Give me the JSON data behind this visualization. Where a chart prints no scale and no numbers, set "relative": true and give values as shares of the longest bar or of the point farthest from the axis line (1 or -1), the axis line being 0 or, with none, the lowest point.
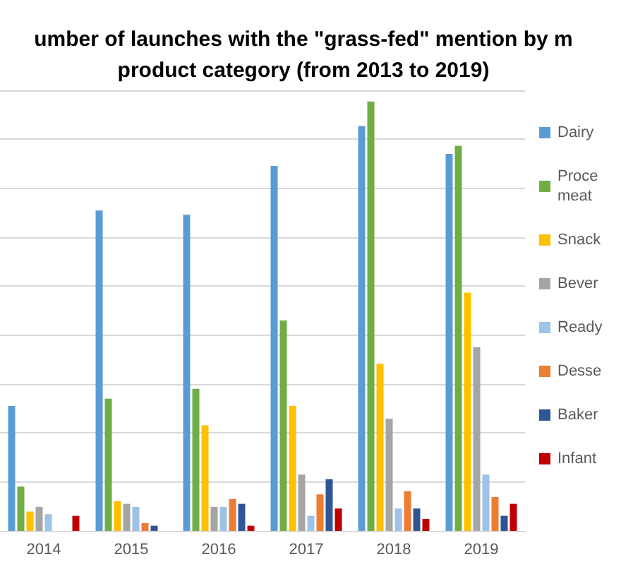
{
  "chart_data": {
    "type": "bar",
    "title": "umber of launches with the \"grass-fed\" mention by m\nproduct category (from 2013 to 2019)",
    "relative": true,
    "grid": "y",
    "legend": "right",
    "categories": [
      "2014",
      "2015",
      "2016",
      "2017",
      "2018",
      "2019"
    ],
    "series": [
      {
        "name": "Dairy",
        "color": "#5b9bd5",
        "values": [
          0.291,
          0.746,
          0.736,
          0.85,
          0.943,
          0.878
        ]
      },
      {
        "name": "Proce meat",
        "color": "#70ad47",
        "values": [
          0.103,
          0.308,
          0.331,
          0.49,
          1,
          0.897
        ]
      },
      {
        "name": "Snack",
        "color": "#ffc000",
        "values": [
          0.045,
          0.069,
          0.246,
          0.291,
          0.389,
          0.555
        ]
      },
      {
        "name": "Bever",
        "color": "#a5a5a5",
        "values": [
          0.056,
          0.063,
          0.056,
          0.131,
          0.261,
          0.428
        ]
      },
      {
        "name": "Ready",
        "color": "#9dc3e6",
        "values": [
          0.039,
          0.056,
          0.056,
          0.035,
          0.052,
          0.131
        ]
      },
      {
        "name": "Desse",
        "color": "#ed7d31",
        "values": [
          0,
          0.018,
          0.074,
          0.085,
          0.092,
          0.079
        ]
      },
      {
        "name": "Baker",
        "color": "#2f5597",
        "values": [
          0,
          0.012,
          0.063,
          0.12,
          0.052,
          0.035
        ]
      },
      {
        "name": "Infant",
        "color": "#c00000",
        "values": [
          0.035,
          0,
          0.012,
          0.052,
          0.028,
          0.063
        ]
      }
    ]
  }
}
